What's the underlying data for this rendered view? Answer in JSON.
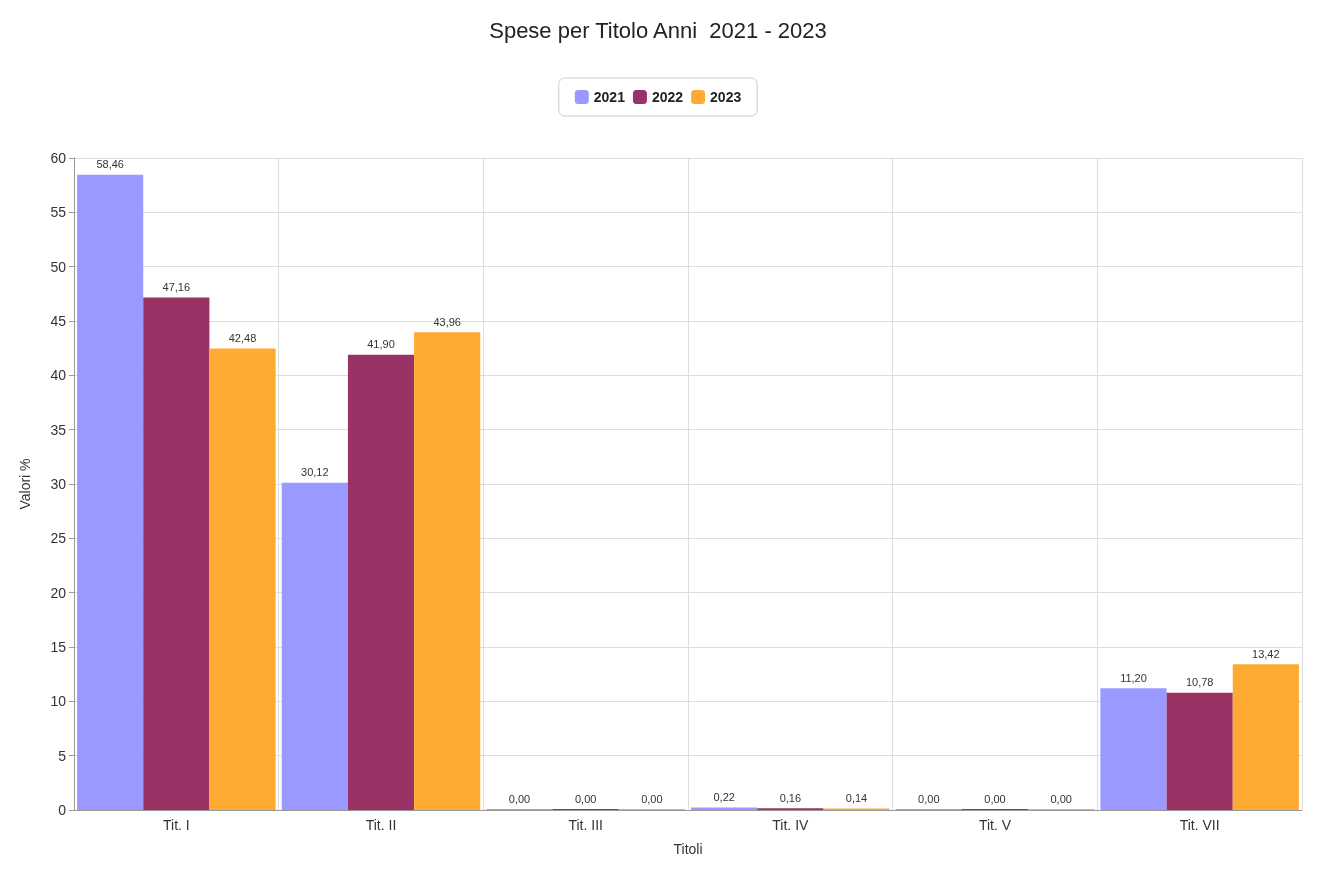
{
  "chart_data": {
    "type": "bar",
    "title": "Spese per Titolo Anni  2021 - 2023",
    "xlabel": "Titoli",
    "ylabel": "Valori %",
    "categories": [
      "Tit. I",
      "Tit. II",
      "Tit. III",
      "Tit. IV",
      "Tit. V",
      "Tit. VII"
    ],
    "series": [
      {
        "name": "2021",
        "color": "#9999ff",
        "values": [
          58.46,
          30.12,
          0,
          0.22,
          0,
          11.2
        ],
        "value_labels": [
          "58,46",
          "30,12",
          "0,00",
          "0,22",
          "0,00",
          "11,20"
        ]
      },
      {
        "name": "2022",
        "color": "#993366",
        "values": [
          47.16,
          41.9,
          0,
          0.16,
          0,
          10.78
        ],
        "value_labels": [
          "47,16",
          "41,90",
          "0,00",
          "0,16",
          "0,00",
          "10,78"
        ]
      },
      {
        "name": "2023",
        "color": "#ffaa33",
        "values": [
          42.48,
          43.96,
          0,
          0.14,
          0,
          13.42
        ],
        "value_labels": [
          "42,48",
          "43,96",
          "0,00",
          "0,14",
          "0,00",
          "13,42"
        ]
      }
    ],
    "ylim": [
      0,
      60
    ],
    "yticks": [
      0,
      5,
      10,
      15,
      20,
      25,
      30,
      35,
      40,
      45,
      50,
      55,
      60
    ],
    "grid": true,
    "legend": "top"
  }
}
